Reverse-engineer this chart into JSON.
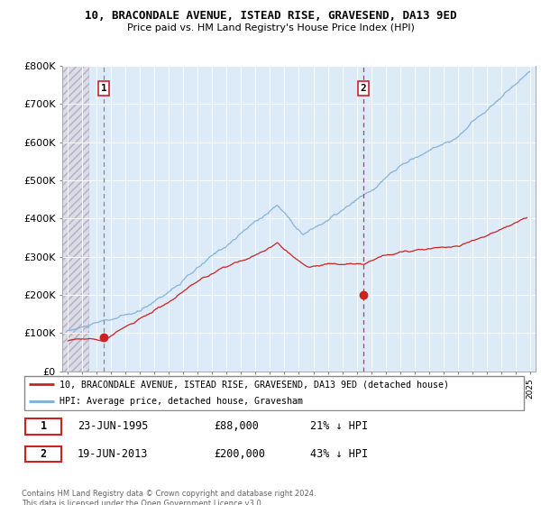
{
  "title1": "10, BRACONDALE AVENUE, ISTEAD RISE, GRAVESEND, DA13 9ED",
  "title2": "Price paid vs. HM Land Registry's House Price Index (HPI)",
  "sale1": {
    "date_num": 1995.47,
    "price": 88000,
    "label": "1",
    "date_str": "23-JUN-1995",
    "pct": "21% ↓ HPI"
  },
  "sale2": {
    "date_num": 2013.47,
    "price": 200000,
    "label": "2",
    "date_str": "19-JUN-2013",
    "pct": "43% ↓ HPI"
  },
  "ylim": [
    0,
    800000
  ],
  "xlim_left": 1992.6,
  "xlim_right": 2025.4,
  "hpi_color": "#7aaed6",
  "price_color": "#cc2222",
  "vline1_color": "#888888",
  "vline2_color": "#dd3333",
  "legend_label1": "10, BRACONDALE AVENUE, ISTEAD RISE, GRAVESEND, DA13 9ED (detached house)",
  "legend_label2": "HPI: Average price, detached house, Gravesham",
  "footnote": "Contains HM Land Registry data © Crown copyright and database right 2024.\nThis data is licensed under the Open Government Licence v3.0.",
  "background_hatch_color": "#dcdce8",
  "background_main_color": "#ddeaf8",
  "grid_color": "#ffffff",
  "hatch_end": 1994.5,
  "yticks": [
    0,
    100000,
    200000,
    300000,
    400000,
    500000,
    600000,
    700000,
    800000
  ],
  "ylabels": [
    "£0",
    "£100K",
    "£200K",
    "£300K",
    "£400K",
    "£500K",
    "£600K",
    "£700K",
    "£800K"
  ]
}
